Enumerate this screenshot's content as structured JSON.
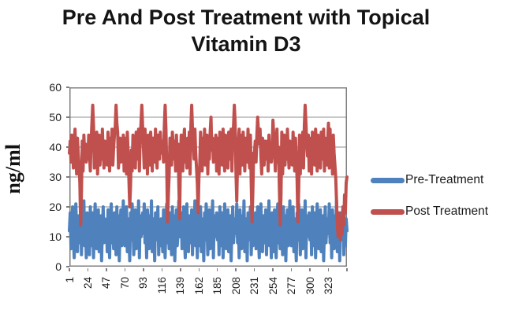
{
  "header": {
    "title_line1": "Pre And Post Treatment with Topical",
    "title_line2": "Vitamin D3"
  },
  "legend": {
    "items": [
      {
        "label": "Pre-Treatment",
        "color": "#4F81BD"
      },
      {
        "label": "Post Treatment",
        "color": "#C0504D"
      }
    ]
  },
  "colors": {
    "pre_treatment": "#4F81BD",
    "post_treatment": "#C0504D",
    "gridline": "#8f8f8f",
    "plot_border": "#7f7f7f",
    "text": "#1f1f1f"
  },
  "chart_data": {
    "type": "line",
    "title": "Pre And Post Treatment with Topical Vitamin D3",
    "xlabel": "",
    "ylabel": "ng/ml",
    "ylim": [
      0,
      60
    ],
    "yticks": [
      0,
      10,
      20,
      30,
      40,
      50,
      60
    ],
    "xtick_labels": [
      1,
      24,
      47,
      70,
      93,
      116,
      139,
      162,
      185,
      208,
      231,
      254,
      277,
      300,
      323
    ],
    "n_points": 346,
    "grid": true,
    "legend_position": "right",
    "line_width": 4,
    "series": [
      {
        "name": "Pre-Treatment",
        "color": "#4F81BD",
        "values": [
          12,
          18,
          6,
          14,
          20,
          9,
          3,
          15,
          21,
          11,
          5,
          17,
          13,
          8,
          19,
          4,
          16,
          10,
          22,
          7,
          14,
          3,
          18,
          9,
          16,
          4,
          20,
          12,
          7,
          18,
          3,
          14,
          21,
          10,
          6,
          15,
          19,
          5,
          11,
          17,
          2,
          13,
          20,
          8,
          16,
          11,
          15,
          5,
          19,
          10,
          3,
          16,
          21,
          8,
          13,
          6,
          18,
          12,
          4,
          20,
          9,
          17,
          2,
          14,
          19,
          7,
          11,
          22,
          10,
          7,
          13,
          20,
          5,
          16,
          11,
          2,
          18,
          9,
          21,
          14,
          4,
          12,
          19,
          6,
          15,
          8,
          22,
          3,
          17,
          10,
          13,
          18,
          11,
          21,
          8,
          15,
          3,
          19,
          13,
          6,
          17,
          10,
          22,
          5,
          12,
          16,
          2,
          18,
          9,
          14,
          20,
          4,
          13,
          7,
          16,
          15,
          5,
          19,
          10,
          3,
          16,
          21,
          8,
          13,
          6,
          18,
          12,
          4,
          20,
          9,
          17,
          2,
          14,
          19,
          7,
          11,
          22,
          10,
          12,
          18,
          6,
          14,
          20,
          9,
          3,
          15,
          21,
          11,
          5,
          17,
          13,
          8,
          19,
          4,
          16,
          10,
          22,
          7,
          14,
          3,
          18,
          7,
          13,
          20,
          5,
          16,
          11,
          2,
          18,
          9,
          21,
          14,
          4,
          12,
          19,
          6,
          15,
          8,
          22,
          3,
          17,
          10,
          13,
          18,
          9,
          16,
          4,
          20,
          12,
          7,
          18,
          3,
          14,
          21,
          10,
          6,
          15,
          19,
          5,
          11,
          17,
          2,
          13,
          20,
          8,
          16,
          11,
          11,
          21,
          8,
          15,
          3,
          19,
          13,
          6,
          17,
          10,
          22,
          5,
          12,
          16,
          2,
          18,
          9,
          14,
          20,
          4,
          13,
          7,
          16,
          12,
          18,
          6,
          14,
          20,
          9,
          3,
          15,
          21,
          11,
          5,
          17,
          13,
          8,
          19,
          4,
          16,
          10,
          22,
          7,
          14,
          3,
          18,
          15,
          5,
          19,
          10,
          3,
          16,
          21,
          8,
          13,
          6,
          18,
          12,
          4,
          20,
          9,
          17,
          2,
          14,
          19,
          7,
          11,
          22,
          10,
          7,
          13,
          20,
          5,
          16,
          11,
          2,
          18,
          9,
          21,
          14,
          4,
          12,
          19,
          6,
          15,
          8,
          22,
          3,
          17,
          10,
          13,
          18,
          9,
          16,
          4,
          20,
          12,
          7,
          18,
          3,
          14,
          21,
          10,
          6,
          15,
          19,
          5,
          11,
          17,
          2,
          13,
          20,
          8,
          16,
          11,
          11,
          21,
          8,
          15,
          3,
          19,
          13,
          6,
          17,
          10,
          22,
          5,
          12,
          16,
          2,
          18,
          9,
          14,
          20,
          4,
          13,
          7,
          16,
          12
        ]
      },
      {
        "name": "Post Treatment",
        "color": "#C0504D",
        "values": [
          38,
          42,
          35,
          44,
          39,
          33,
          41,
          46,
          37,
          31,
          43,
          38,
          34,
          28,
          14,
          25,
          42,
          32,
          44,
          37,
          41,
          35,
          39,
          36,
          44,
          38,
          32,
          42,
          48,
          54,
          47,
          33,
          43,
          37,
          45,
          31,
          39,
          44,
          34,
          41,
          36,
          46,
          38,
          33,
          42,
          40,
          41,
          34,
          45,
          39,
          32,
          43,
          37,
          46,
          34,
          40,
          44,
          47,
          54,
          48,
          45,
          33,
          39,
          43,
          35,
          41,
          37,
          44,
          32,
          35,
          43,
          31,
          45,
          38,
          29,
          20,
          27,
          39,
          32,
          44,
          37,
          41,
          33,
          45,
          36,
          40,
          46,
          32,
          43,
          48,
          54,
          47,
          40,
          33,
          46,
          36,
          42,
          31,
          44,
          38,
          34,
          45,
          39,
          32,
          43,
          41,
          35,
          46,
          37,
          33,
          44,
          40,
          36,
          45,
          38,
          38,
          42,
          35,
          47,
          54,
          46,
          33,
          15,
          24,
          31,
          43,
          38,
          34,
          45,
          40,
          36,
          42,
          32,
          44,
          37,
          41,
          28,
          16,
          36,
          44,
          38,
          32,
          42,
          46,
          35,
          40,
          33,
          43,
          37,
          45,
          31,
          47,
          54,
          46,
          41,
          36,
          46,
          38,
          33,
          28,
          18,
          30,
          34,
          45,
          39,
          32,
          43,
          37,
          46,
          34,
          40,
          44,
          31,
          42,
          36,
          45,
          50,
          39,
          43,
          35,
          41,
          37,
          44,
          32,
          35,
          43,
          31,
          45,
          38,
          42,
          34,
          46,
          39,
          32,
          44,
          37,
          41,
          33,
          45,
          36,
          40,
          46,
          32,
          43,
          47,
          54,
          48,
          32,
          22,
          36,
          42,
          46,
          31,
          44,
          38,
          34,
          45,
          39,
          32,
          43,
          41,
          35,
          46,
          37,
          33,
          44,
          28,
          15,
          25,
          38,
          38,
          42,
          35,
          44,
          50,
          45,
          41,
          46,
          37,
          31,
          43,
          38,
          34,
          42,
          40,
          36,
          42,
          32,
          44,
          37,
          41,
          35,
          39,
          49,
          44,
          38,
          32,
          42,
          46,
          35,
          40,
          26,
          14,
          24,
          45,
          31,
          39,
          44,
          34,
          41,
          36,
          46,
          38,
          33,
          42,
          40,
          41,
          34,
          45,
          39,
          32,
          43,
          37,
          29,
          15,
          26,
          44,
          31,
          42,
          36,
          45,
          33,
          47,
          54,
          48,
          41,
          37,
          44,
          32,
          35,
          43,
          31,
          45,
          38,
          42,
          34,
          46,
          39,
          32,
          44,
          37,
          41,
          33,
          45,
          36,
          40,
          46,
          32,
          43,
          38,
          34,
          42,
          48,
          33,
          46,
          36,
          42,
          31,
          44,
          38,
          34,
          30,
          22,
          14,
          10,
          18,
          12,
          9,
          16,
          11,
          20,
          14,
          24,
          18,
          28,
          30
        ]
      }
    ]
  }
}
